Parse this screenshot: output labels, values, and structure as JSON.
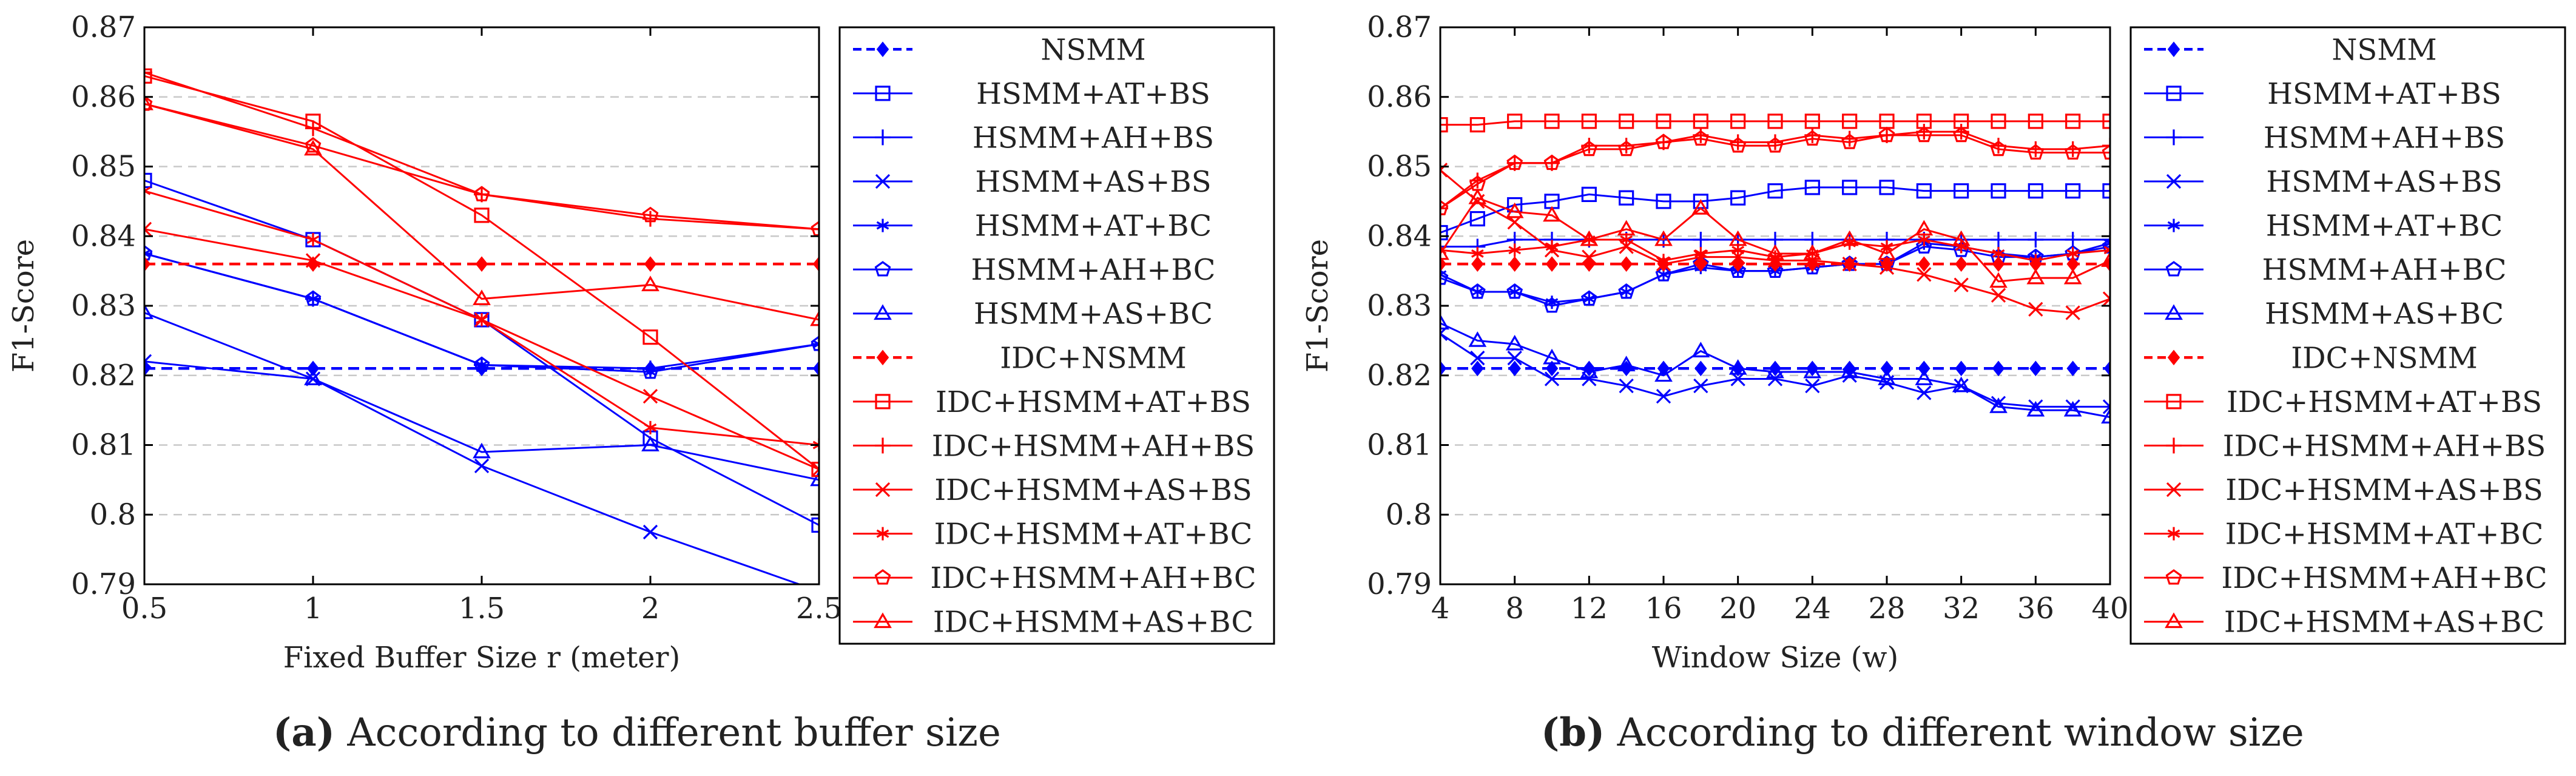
{
  "chart_data": [
    {
      "type": "line",
      "panel": "a",
      "xlabel": "Fixed Buffer Size r (meter)",
      "ylabel": "F1-Score",
      "xlim": [
        0.5,
        2.5
      ],
      "ylim": [
        0.79,
        0.87
      ],
      "xticks": [
        0.5,
        1,
        1.5,
        2,
        2.5
      ],
      "xtick_labels": [
        "0.5",
        "1",
        "1.5",
        "2",
        "2.5"
      ],
      "yticks": [
        0.79,
        0.8,
        0.81,
        0.82,
        0.83,
        0.84,
        0.85,
        0.86,
        0.87
      ],
      "ytick_labels": [
        "0.79",
        "0.8",
        "0.81",
        "0.82",
        "0.83",
        "0.84",
        "0.85",
        "0.86",
        "0.87"
      ],
      "grid": "horizontal-dashed",
      "legend": "right",
      "x": [
        0.5,
        1,
        1.5,
        2,
        2.5
      ],
      "series": [
        {
          "name": "NSMM",
          "color": "#0000ff",
          "marker": "diamond-filled",
          "dashed": true,
          "values": [
            0.821,
            0.821,
            0.821,
            0.821,
            0.821
          ]
        },
        {
          "name": "HSMM+AT+BS",
          "color": "#0000ff",
          "marker": "square",
          "dashed": false,
          "values": [
            0.848,
            0.8395,
            0.828,
            0.811,
            0.7985
          ]
        },
        {
          "name": "HSMM+AH+BS",
          "color": "#0000ff",
          "marker": "plus",
          "dashed": false,
          "values": [
            0.8375,
            0.831,
            0.8215,
            0.821,
            0.8245
          ]
        },
        {
          "name": "HSMM+AS+BS",
          "color": "#0000ff",
          "marker": "cross",
          "dashed": false,
          "values": [
            0.822,
            0.8195,
            0.807,
            0.7975,
            0.789
          ]
        },
        {
          "name": "HSMM+AT+BC",
          "color": "#0000ff",
          "marker": "star",
          "dashed": false,
          "values": [
            0.8375,
            0.831,
            0.8215,
            0.8205,
            0.8245
          ]
        },
        {
          "name": "HSMM+AH+BC",
          "color": "#0000ff",
          "marker": "pentagon",
          "dashed": false,
          "values": [
            0.8375,
            0.831,
            0.8215,
            0.8205,
            0.8245
          ]
        },
        {
          "name": "HSMM+AS+BC",
          "color": "#0000ff",
          "marker": "triangle",
          "dashed": false,
          "values": [
            0.829,
            0.8195,
            0.809,
            0.81,
            0.805
          ]
        },
        {
          "name": "IDC+NSMM",
          "color": "#ff0000",
          "marker": "diamond-filled",
          "dashed": true,
          "values": [
            0.836,
            0.836,
            0.836,
            0.836,
            0.836
          ]
        },
        {
          "name": "IDC+HSMM+AT+BS",
          "color": "#ff0000",
          "marker": "square",
          "dashed": false,
          "values": [
            0.863,
            0.8565,
            0.843,
            0.8255,
            0.8065
          ]
        },
        {
          "name": "IDC+HSMM+AH+BS",
          "color": "#ff0000",
          "marker": "plus",
          "dashed": false,
          "values": [
            0.8635,
            0.8555,
            0.846,
            0.8425,
            0.841
          ]
        },
        {
          "name": "IDC+HSMM+AS+BS",
          "color": "#ff0000",
          "marker": "cross",
          "dashed": false,
          "values": [
            0.841,
            0.8365,
            0.828,
            0.817,
            0.8065
          ]
        },
        {
          "name": "IDC+HSMM+AT+BC",
          "color": "#ff0000",
          "marker": "star",
          "dashed": false,
          "values": [
            0.8465,
            0.8395,
            0.828,
            0.8125,
            0.81
          ]
        },
        {
          "name": "IDC+HSMM+AH+BC",
          "color": "#ff0000",
          "marker": "pentagon",
          "dashed": false,
          "values": [
            0.859,
            0.853,
            0.846,
            0.843,
            0.841
          ]
        },
        {
          "name": "IDC+HSMM+AS+BC",
          "color": "#ff0000",
          "marker": "triangle",
          "dashed": false,
          "values": [
            0.859,
            0.8525,
            0.831,
            0.833,
            0.828
          ]
        }
      ]
    },
    {
      "type": "line",
      "panel": "b",
      "xlabel": "Window Size (w)",
      "ylabel": "F1-Score",
      "xlim": [
        4,
        40
      ],
      "ylim": [
        0.79,
        0.87
      ],
      "xticks": [
        4,
        8,
        12,
        16,
        20,
        24,
        28,
        32,
        36,
        40
      ],
      "xtick_labels": [
        "4",
        "8",
        "12",
        "16",
        "20",
        "24",
        "28",
        "32",
        "36",
        "40"
      ],
      "yticks": [
        0.79,
        0.8,
        0.81,
        0.82,
        0.83,
        0.84,
        0.85,
        0.86,
        0.87
      ],
      "ytick_labels": [
        "0.79",
        "0.8",
        "0.81",
        "0.82",
        "0.83",
        "0.84",
        "0.85",
        "0.86",
        "0.87"
      ],
      "grid": "horizontal-dashed",
      "legend": "right",
      "x": [
        4,
        6,
        8,
        10,
        12,
        14,
        16,
        18,
        20,
        22,
        24,
        26,
        28,
        30,
        32,
        34,
        36,
        38,
        40
      ],
      "series": [
        {
          "name": "NSMM",
          "color": "#0000ff",
          "marker": "diamond-filled",
          "dashed": true,
          "values": [
            0.821,
            0.821,
            0.821,
            0.821,
            0.821,
            0.821,
            0.821,
            0.821,
            0.821,
            0.821,
            0.821,
            0.821,
            0.821,
            0.821,
            0.821,
            0.821,
            0.821,
            0.821,
            0.821
          ]
        },
        {
          "name": "HSMM+AT+BS",
          "color": "#0000ff",
          "marker": "square",
          "dashed": false,
          "values": [
            0.8405,
            0.8425,
            0.8445,
            0.845,
            0.846,
            0.8455,
            0.845,
            0.845,
            0.8455,
            0.8465,
            0.847,
            0.847,
            0.847,
            0.8465,
            0.8465,
            0.8465,
            0.8465,
            0.8465,
            0.8465
          ]
        },
        {
          "name": "HSMM+AH+BS",
          "color": "#0000ff",
          "marker": "plus",
          "dashed": false,
          "values": [
            0.8385,
            0.8385,
            0.8395,
            0.8395,
            0.8395,
            0.8395,
            0.8395,
            0.8395,
            0.8395,
            0.8395,
            0.8395,
            0.8395,
            0.8395,
            0.8395,
            0.8395,
            0.8395,
            0.8395,
            0.8395,
            0.8395
          ]
        },
        {
          "name": "HSMM+AS+BS",
          "color": "#0000ff",
          "marker": "cross",
          "dashed": false,
          "values": [
            0.826,
            0.8225,
            0.8225,
            0.8195,
            0.8195,
            0.8185,
            0.817,
            0.8185,
            0.8195,
            0.8195,
            0.8185,
            0.82,
            0.819,
            0.8175,
            0.8185,
            0.816,
            0.8155,
            0.8155,
            0.8155
          ]
        },
        {
          "name": "HSMM+AT+BC",
          "color": "#0000ff",
          "marker": "star",
          "dashed": false,
          "values": [
            0.8345,
            0.832,
            0.832,
            0.8305,
            0.831,
            0.832,
            0.8345,
            0.8355,
            0.835,
            0.835,
            0.8355,
            0.836,
            0.836,
            0.839,
            0.8385,
            0.8375,
            0.837,
            0.8375,
            0.839
          ]
        },
        {
          "name": "HSMM+AH+BC",
          "color": "#0000ff",
          "marker": "pentagon",
          "dashed": false,
          "values": [
            0.834,
            0.832,
            0.832,
            0.83,
            0.831,
            0.832,
            0.8345,
            0.836,
            0.835,
            0.835,
            0.8355,
            0.836,
            0.836,
            0.8385,
            0.838,
            0.837,
            0.837,
            0.8375,
            0.8385
          ]
        },
        {
          "name": "HSMM+AS+BC",
          "color": "#0000ff",
          "marker": "triangle",
          "dashed": false,
          "values": [
            0.8275,
            0.825,
            0.8245,
            0.8225,
            0.8205,
            0.8215,
            0.82,
            0.8235,
            0.821,
            0.8205,
            0.8205,
            0.8205,
            0.8195,
            0.8195,
            0.8185,
            0.8155,
            0.815,
            0.815,
            0.814
          ]
        },
        {
          "name": "IDC+NSMM",
          "color": "#ff0000",
          "marker": "diamond-filled",
          "dashed": true,
          "values": [
            0.836,
            0.836,
            0.836,
            0.836,
            0.836,
            0.836,
            0.836,
            0.836,
            0.836,
            0.836,
            0.836,
            0.836,
            0.836,
            0.836,
            0.836,
            0.836,
            0.836,
            0.836,
            0.836
          ]
        },
        {
          "name": "IDC+HSMM+AT+BS",
          "color": "#ff0000",
          "marker": "square",
          "dashed": false,
          "values": [
            0.856,
            0.856,
            0.8565,
            0.8565,
            0.8565,
            0.8565,
            0.8565,
            0.8565,
            0.8565,
            0.8565,
            0.8565,
            0.8565,
            0.8565,
            0.8565,
            0.8565,
            0.8565,
            0.8565,
            0.8565,
            0.8565
          ]
        },
        {
          "name": "IDC+HSMM+AH+BS",
          "color": "#ff0000",
          "marker": "plus",
          "dashed": false,
          "values": [
            0.844,
            0.848,
            0.8505,
            0.8505,
            0.853,
            0.853,
            0.8535,
            0.8545,
            0.8535,
            0.8535,
            0.8545,
            0.854,
            0.8545,
            0.855,
            0.855,
            0.853,
            0.8525,
            0.8525,
            0.853
          ]
        },
        {
          "name": "IDC+HSMM+AS+BS",
          "color": "#ff0000",
          "marker": "cross",
          "dashed": false,
          "values": [
            0.8495,
            0.845,
            0.842,
            0.838,
            0.837,
            0.8385,
            0.836,
            0.837,
            0.837,
            0.8365,
            0.8365,
            0.836,
            0.8355,
            0.8345,
            0.833,
            0.8315,
            0.8295,
            0.829,
            0.831
          ]
        },
        {
          "name": "IDC+HSMM+AT+BC",
          "color": "#ff0000",
          "marker": "star",
          "dashed": false,
          "values": [
            0.838,
            0.8375,
            0.838,
            0.8385,
            0.8395,
            0.8395,
            0.8365,
            0.8375,
            0.838,
            0.837,
            0.8375,
            0.839,
            0.8385,
            0.8395,
            0.8385,
            0.8375,
            0.8365,
            0.8375,
            0.838
          ]
        },
        {
          "name": "IDC+HSMM+AH+BC",
          "color": "#ff0000",
          "marker": "pentagon",
          "dashed": false,
          "values": [
            0.844,
            0.8475,
            0.8505,
            0.8505,
            0.8525,
            0.8525,
            0.8535,
            0.854,
            0.853,
            0.853,
            0.854,
            0.8535,
            0.8545,
            0.8545,
            0.8545,
            0.8525,
            0.852,
            0.852,
            0.852
          ]
        },
        {
          "name": "IDC+HSMM+AS+BC",
          "color": "#ff0000",
          "marker": "triangle",
          "dashed": false,
          "values": [
            0.8375,
            0.8455,
            0.8435,
            0.843,
            0.8395,
            0.841,
            0.8395,
            0.844,
            0.8395,
            0.8375,
            0.8375,
            0.8395,
            0.8375,
            0.841,
            0.8395,
            0.8335,
            0.834,
            0.834,
            0.8365
          ]
        }
      ]
    }
  ],
  "captions": {
    "a": {
      "label": "(a)",
      "text": " According to different buffer size"
    },
    "b": {
      "label": "(b)",
      "text": " According to different window size"
    }
  }
}
